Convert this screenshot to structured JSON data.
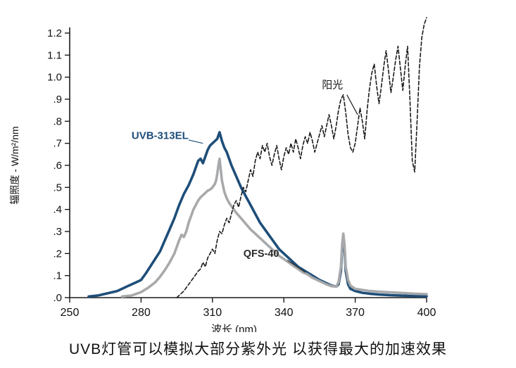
{
  "caption": "UVB灯管可以模拟大部分紫外光 以获得最大的加速效果",
  "chart_data": {
    "type": "line",
    "title": "",
    "xlabel": "波长 (nm)",
    "ylabel": "辐照度 - W/m²/nm",
    "xlim": [
      250,
      400
    ],
    "ylim": [
      0,
      1.2
    ],
    "grid": false,
    "legend_position": "none",
    "xticks": [
      250,
      280,
      310,
      340,
      370,
      400
    ],
    "yticks": [
      0,
      0.1,
      0.2,
      0.3,
      0.4,
      0.5,
      0.6,
      0.7,
      0.8,
      0.9,
      1.0,
      1.1,
      1.2
    ],
    "ytick_labels": [
      ".0",
      ".1",
      ".2",
      ".3",
      ".4",
      ".5",
      ".6",
      ".7",
      ".8",
      ".9",
      "1.0",
      "1.1",
      "1.2"
    ],
    "axis_color": "#1a1a1a",
    "series": [
      {
        "name": "UVB-313EL",
        "color": "#1e4e79",
        "style": "solid",
        "width": 3.6,
        "points": [
          [
            258,
            0.005
          ],
          [
            262,
            0.01
          ],
          [
            266,
            0.02
          ],
          [
            270,
            0.03
          ],
          [
            274,
            0.05
          ],
          [
            278,
            0.07
          ],
          [
            280,
            0.08
          ],
          [
            282,
            0.11
          ],
          [
            285,
            0.16
          ],
          [
            288,
            0.21
          ],
          [
            290,
            0.26
          ],
          [
            292,
            0.31
          ],
          [
            294,
            0.36
          ],
          [
            296,
            0.42
          ],
          [
            298,
            0.47
          ],
          [
            300,
            0.51
          ],
          [
            302,
            0.56
          ],
          [
            303,
            0.59
          ],
          [
            304,
            0.62
          ],
          [
            305,
            0.63
          ],
          [
            306,
            0.61
          ],
          [
            307,
            0.64
          ],
          [
            308,
            0.67
          ],
          [
            309,
            0.69
          ],
          [
            310,
            0.7
          ],
          [
            311,
            0.71
          ],
          [
            312,
            0.72
          ],
          [
            313,
            0.75
          ],
          [
            314,
            0.71
          ],
          [
            315,
            0.68
          ],
          [
            316,
            0.66
          ],
          [
            318,
            0.6
          ],
          [
            320,
            0.55
          ],
          [
            322,
            0.5
          ],
          [
            324,
            0.46
          ],
          [
            326,
            0.42
          ],
          [
            328,
            0.38
          ],
          [
            330,
            0.34
          ],
          [
            332,
            0.31
          ],
          [
            334,
            0.28
          ],
          [
            336,
            0.25
          ],
          [
            338,
            0.22
          ],
          [
            340,
            0.2
          ],
          [
            343,
            0.17
          ],
          [
            346,
            0.14
          ],
          [
            349,
            0.12
          ],
          [
            352,
            0.1
          ],
          [
            355,
            0.08
          ],
          [
            358,
            0.065
          ],
          [
            360,
            0.055
          ],
          [
            362,
            0.05
          ],
          [
            363,
            0.06
          ],
          [
            364,
            0.12
          ],
          [
            364.5,
            0.22
          ],
          [
            365,
            0.28
          ],
          [
            365.5,
            0.22
          ],
          [
            366,
            0.12
          ],
          [
            367,
            0.06
          ],
          [
            368,
            0.04
          ],
          [
            370,
            0.03
          ],
          [
            373,
            0.022
          ],
          [
            376,
            0.018
          ],
          [
            380,
            0.014
          ],
          [
            385,
            0.011
          ],
          [
            390,
            0.009
          ],
          [
            395,
            0.007
          ],
          [
            400,
            0.006
          ]
        ]
      },
      {
        "name": "QFS-40",
        "color": "#a8a9ab",
        "style": "solid",
        "width": 3.6,
        "points": [
          [
            272,
            0.005
          ],
          [
            276,
            0.01
          ],
          [
            280,
            0.025
          ],
          [
            283,
            0.045
          ],
          [
            286,
            0.07
          ],
          [
            288,
            0.095
          ],
          [
            290,
            0.125
          ],
          [
            292,
            0.16
          ],
          [
            294,
            0.2
          ],
          [
            295,
            0.23
          ],
          [
            296,
            0.26
          ],
          [
            297,
            0.285
          ],
          [
            298,
            0.275
          ],
          [
            299,
            0.3
          ],
          [
            300,
            0.34
          ],
          [
            301,
            0.37
          ],
          [
            302,
            0.4
          ],
          [
            303,
            0.42
          ],
          [
            304,
            0.44
          ],
          [
            305,
            0.455
          ],
          [
            306,
            0.465
          ],
          [
            307,
            0.475
          ],
          [
            308,
            0.485
          ],
          [
            309,
            0.49
          ],
          [
            310,
            0.5
          ],
          [
            311,
            0.515
          ],
          [
            311.5,
            0.53
          ],
          [
            312,
            0.56
          ],
          [
            312.5,
            0.6
          ],
          [
            313,
            0.63
          ],
          [
            313.5,
            0.58
          ],
          [
            314,
            0.53
          ],
          [
            315,
            0.48
          ],
          [
            316,
            0.45
          ],
          [
            317,
            0.43
          ],
          [
            318,
            0.415
          ],
          [
            320,
            0.385
          ],
          [
            322,
            0.36
          ],
          [
            324,
            0.335
          ],
          [
            326,
            0.31
          ],
          [
            328,
            0.29
          ],
          [
            330,
            0.27
          ],
          [
            332,
            0.25
          ],
          [
            334,
            0.23
          ],
          [
            336,
            0.21
          ],
          [
            338,
            0.19
          ],
          [
            340,
            0.175
          ],
          [
            342,
            0.16
          ],
          [
            344,
            0.145
          ],
          [
            346,
            0.13
          ],
          [
            348,
            0.115
          ],
          [
            350,
            0.105
          ],
          [
            352,
            0.09
          ],
          [
            354,
            0.08
          ],
          [
            356,
            0.07
          ],
          [
            358,
            0.06
          ],
          [
            360,
            0.052
          ],
          [
            362,
            0.05
          ],
          [
            363,
            0.07
          ],
          [
            364,
            0.14
          ],
          [
            364.5,
            0.24
          ],
          [
            365,
            0.29
          ],
          [
            365.5,
            0.24
          ],
          [
            366,
            0.14
          ],
          [
            367,
            0.08
          ],
          [
            368,
            0.055
          ],
          [
            370,
            0.04
          ],
          [
            373,
            0.035
          ],
          [
            376,
            0.03
          ],
          [
            380,
            0.027
          ],
          [
            385,
            0.024
          ],
          [
            390,
            0.021
          ],
          [
            395,
            0.018
          ],
          [
            400,
            0.016
          ]
        ]
      },
      {
        "name": "阳光",
        "color": "#1a1a1a",
        "style": "dashed",
        "width": 1.6,
        "points": [
          [
            295,
            0.0
          ],
          [
            298,
            0.03
          ],
          [
            300,
            0.06
          ],
          [
            302,
            0.09
          ],
          [
            304,
            0.12
          ],
          [
            305,
            0.13
          ],
          [
            306,
            0.16
          ],
          [
            307,
            0.14
          ],
          [
            308,
            0.18
          ],
          [
            310,
            0.22
          ],
          [
            311,
            0.2
          ],
          [
            312,
            0.26
          ],
          [
            313,
            0.3
          ],
          [
            314,
            0.29
          ],
          [
            315,
            0.33
          ],
          [
            316,
            0.36
          ],
          [
            317,
            0.34
          ],
          [
            318,
            0.38
          ],
          [
            319,
            0.42
          ],
          [
            320,
            0.44
          ],
          [
            321,
            0.41
          ],
          [
            322,
            0.46
          ],
          [
            323,
            0.5
          ],
          [
            324,
            0.48
          ],
          [
            325,
            0.53
          ],
          [
            326,
            0.58
          ],
          [
            327,
            0.55
          ],
          [
            328,
            0.62
          ],
          [
            329,
            0.66
          ],
          [
            330,
            0.63
          ],
          [
            331,
            0.69
          ],
          [
            332,
            0.66
          ],
          [
            333,
            0.7
          ],
          [
            334,
            0.64
          ],
          [
            335,
            0.6
          ],
          [
            336,
            0.65
          ],
          [
            337,
            0.69
          ],
          [
            338,
            0.63
          ],
          [
            339,
            0.58
          ],
          [
            340,
            0.64
          ],
          [
            341,
            0.68
          ],
          [
            342,
            0.65
          ],
          [
            343,
            0.7
          ],
          [
            344,
            0.66
          ],
          [
            345,
            0.72
          ],
          [
            346,
            0.68
          ],
          [
            347,
            0.63
          ],
          [
            348,
            0.69
          ],
          [
            349,
            0.73
          ],
          [
            350,
            0.7
          ],
          [
            351,
            0.75
          ],
          [
            352,
            0.71
          ],
          [
            353,
            0.66
          ],
          [
            354,
            0.7
          ],
          [
            355,
            0.74
          ],
          [
            356,
            0.78
          ],
          [
            357,
            0.73
          ],
          [
            358,
            0.78
          ],
          [
            359,
            0.83
          ],
          [
            360,
            0.78
          ],
          [
            361,
            0.72
          ],
          [
            362,
            0.78
          ],
          [
            363,
            0.85
          ],
          [
            364,
            0.9
          ],
          [
            365,
            0.92
          ],
          [
            366,
            0.84
          ],
          [
            367,
            0.74
          ],
          [
            368,
            0.68
          ],
          [
            369,
            0.66
          ],
          [
            370,
            0.7
          ],
          [
            371,
            0.78
          ],
          [
            372,
            0.86
          ],
          [
            373,
            0.8
          ],
          [
            374,
            0.72
          ],
          [
            375,
            0.85
          ],
          [
            376,
            0.95
          ],
          [
            377,
            1.02
          ],
          [
            378,
            1.06
          ],
          [
            379,
            0.96
          ],
          [
            380,
            0.88
          ],
          [
            381,
            0.96
          ],
          [
            382,
            1.05
          ],
          [
            383,
            1.12
          ],
          [
            384,
            1.03
          ],
          [
            385,
            0.93
          ],
          [
            386,
            1.0
          ],
          [
            387,
            1.08
          ],
          [
            388,
            1.14
          ],
          [
            389,
            1.04
          ],
          [
            390,
            0.94
          ],
          [
            391,
            1.05
          ],
          [
            392,
            1.14
          ],
          [
            393,
            0.9
          ],
          [
            394,
            0.62
          ],
          [
            395,
            0.57
          ],
          [
            396,
            0.8
          ],
          [
            397,
            1.05
          ],
          [
            398,
            1.18
          ],
          [
            399,
            1.24
          ],
          [
            400,
            1.27
          ]
        ]
      }
    ],
    "annotations": [
      {
        "id": "uvb-313el",
        "text": "UVB-313EL",
        "x": 276,
        "y": 0.72,
        "color": "#1e4e79",
        "bold": true,
        "size": 15,
        "leader": [
          300,
          0.715,
          306,
          0.7
        ]
      },
      {
        "id": "yangguang",
        "text": "阳光",
        "x": 356,
        "y": 0.95,
        "color": "#1a1a1a",
        "bold": false,
        "size": 15,
        "leader": [
          366.5,
          0.92,
          371,
          0.83
        ]
      },
      {
        "id": "qfs-40",
        "text": "QFS-40",
        "x": 323,
        "y": 0.185,
        "color": "#2a2a2a",
        "bold": true,
        "size": 14.5,
        "leader": [
          341.5,
          0.17,
          349,
          0.115
        ]
      }
    ]
  }
}
